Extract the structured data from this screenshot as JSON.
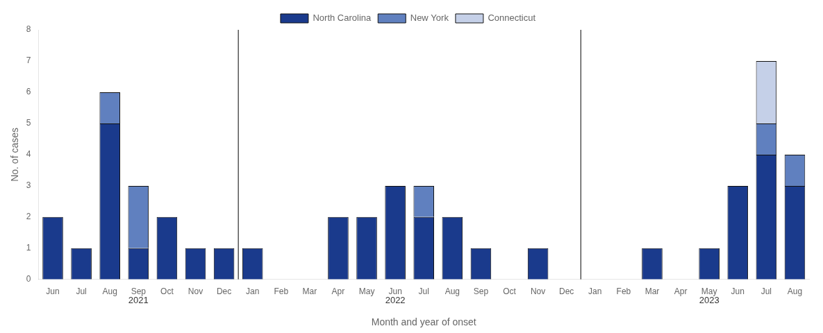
{
  "chart_data": {
    "type": "bar",
    "stacked": true,
    "xlabel": "Month and year of onset",
    "ylabel": "No. of cases",
    "categories": [
      "Jun",
      "Jul",
      "Aug",
      "Sep",
      "Oct",
      "Nov",
      "Dec",
      "Jan",
      "Feb",
      "Mar",
      "Apr",
      "May",
      "Jun",
      "Jul",
      "Aug",
      "Sep",
      "Oct",
      "Nov",
      "Dec",
      "Jan",
      "Feb",
      "Mar",
      "Apr",
      "May",
      "Jun",
      "Jul",
      "Aug"
    ],
    "series": [
      {
        "name": "North Carolina",
        "color": "#1a3a8c",
        "values": [
          2,
          1,
          5,
          1,
          2,
          1,
          1,
          1,
          0,
          0,
          2,
          2,
          3,
          2,
          2,
          1,
          0,
          1,
          0,
          0,
          0,
          1,
          0,
          1,
          3,
          4,
          3
        ]
      },
      {
        "name": "New York",
        "color": "#6080bf",
        "values": [
          0,
          0,
          1,
          2,
          0,
          0,
          0,
          0,
          0,
          0,
          0,
          0,
          0,
          1,
          0,
          0,
          0,
          0,
          0,
          0,
          0,
          0,
          0,
          0,
          0,
          1,
          1
        ]
      },
      {
        "name": "Connecticut",
        "color": "#c5d0e8",
        "values": [
          0,
          0,
          0,
          0,
          0,
          0,
          0,
          0,
          0,
          0,
          0,
          0,
          0,
          0,
          0,
          0,
          0,
          0,
          0,
          0,
          0,
          0,
          0,
          0,
          0,
          2,
          0
        ]
      }
    ],
    "ylim": [
      0,
      8
    ],
    "yticks": [
      0,
      1,
      2,
      3,
      4,
      5,
      6,
      7,
      8
    ],
    "annotations": [
      {
        "text": "2021",
        "x": 3
      },
      {
        "text": "2022",
        "x": 12
      },
      {
        "text": "2023",
        "x": 23
      }
    ],
    "vlines": [
      6.5,
      18.5
    ],
    "grid": false,
    "legend": "top"
  }
}
